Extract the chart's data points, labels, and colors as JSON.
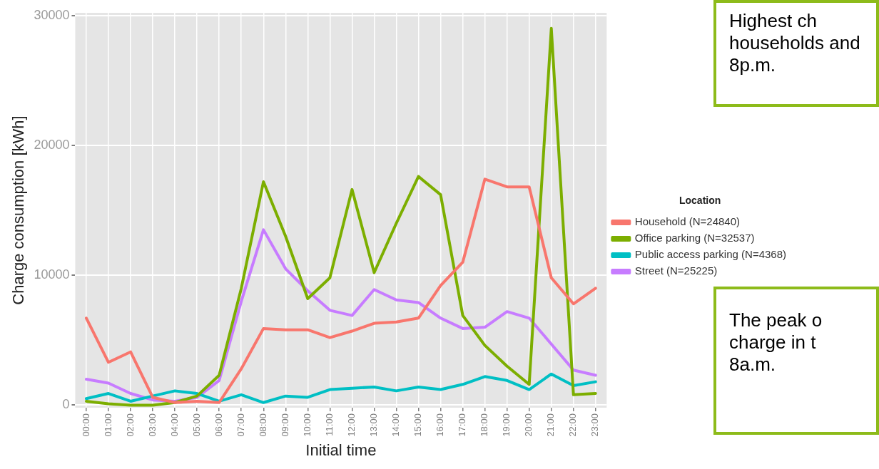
{
  "chart_data": {
    "type": "line",
    "xlabel": "Initial time",
    "ylabel": "Charge consumption [kWh]",
    "legend_title": "Location",
    "categories": [
      "00:00",
      "01:00",
      "02:00",
      "03:00",
      "04:00",
      "05:00",
      "06:00",
      "07:00",
      "08:00",
      "09:00",
      "10:00",
      "11:00",
      "12:00",
      "13:00",
      "14:00",
      "15:00",
      "16:00",
      "17:00",
      "18:00",
      "19:00",
      "20:00",
      "21:00",
      "22:00",
      "23:00"
    ],
    "series": [
      {
        "name": "Household (N=24840)",
        "color": "#f8766d",
        "values": [
          6700,
          3300,
          4100,
          600,
          200,
          300,
          200,
          2800,
          5900,
          5800,
          5800,
          5200,
          5700,
          6300,
          6400,
          6700,
          9200,
          11000,
          17400,
          16800,
          16800,
          9800,
          7800,
          9000
        ]
      },
      {
        "name": "Office parking (N=32537)",
        "color": "#7cae00",
        "values": [
          300,
          100,
          0,
          0,
          200,
          700,
          2300,
          9000,
          17200,
          13000,
          8200,
          9800,
          16600,
          10200,
          14000,
          17600,
          16200,
          6900,
          4600,
          3000,
          1600,
          29000,
          800,
          900
        ]
      },
      {
        "name": "Public access parking (N=4368)",
        "color": "#00bfc4",
        "values": [
          500,
          900,
          300,
          700,
          1100,
          900,
          300,
          800,
          200,
          700,
          600,
          1200,
          1300,
          1400,
          1100,
          1400,
          1200,
          1600,
          2200,
          1900,
          1200,
          2400,
          1500,
          1800
        ]
      },
      {
        "name": "Street (N=25225)",
        "color": "#c77cff",
        "values": [
          2000,
          1700,
          900,
          400,
          300,
          600,
          1900,
          8000,
          13500,
          10500,
          8800,
          7300,
          6900,
          8900,
          8100,
          7900,
          6700,
          5900,
          6000,
          7200,
          6700,
          4700,
          2700,
          2300
        ]
      }
    ],
    "ylim": [
      -200,
      30200
    ],
    "yticks": [
      0,
      10000,
      20000,
      30000
    ],
    "grid": true,
    "legend": "right",
    "marker": "none",
    "line_style": "solid",
    "annotations": [
      "Highest ch households and 8p.m.",
      "The peak o charge in t 8a.m."
    ]
  }
}
